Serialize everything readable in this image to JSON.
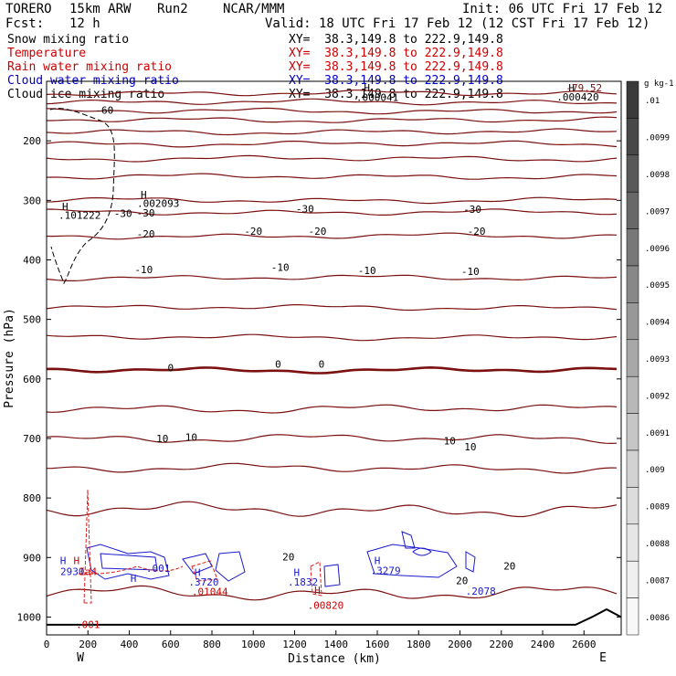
{
  "header": {
    "model": "TORERO",
    "resolution": "15km ARW",
    "run": "Run2",
    "org": "NCAR/MMM",
    "init": "Init: 06 UTC Fri 17 Feb 12",
    "fcst_label": "Fcst:",
    "fcst_value": "12 h",
    "valid": "Valid: 18 UTC Fri 17 Feb 12 (12 CST Fri 17 Feb 12)"
  },
  "fields": [
    {
      "name": "Snow mixing ratio",
      "color": "#000000",
      "xy": "XY=  38.3,149.8 to 222.9,149.8"
    },
    {
      "name": "Temperature",
      "color": "#cc0000",
      "xy": "XY=  38.3,149.8 to 222.9,149.8"
    },
    {
      "name": "Rain water mixing ratio",
      "color": "#cc0000",
      "xy": "XY=  38.3,149.8 to 222.9,149.8"
    },
    {
      "name": "Cloud water mixing ratio",
      "color": "#0000cc",
      "xy": "XY=  38.3,149.8 to 222.9,149.8"
    },
    {
      "name": "Cloud ice mixing ratio",
      "color": "#000000",
      "xy": "XY=  38.3,149.8 to 222.9,149.8"
    }
  ],
  "colors": {
    "temperature": "#7a1010",
    "rain": "#dd2020",
    "cloud_water": "#1a1ad0",
    "snow": "#000000"
  },
  "chart_data": {
    "type": "contour",
    "xlabel": "Distance (km)",
    "ylabel": "Pressure (hPa)",
    "xlim": [
      0,
      2780
    ],
    "ylim": [
      1030,
      100
    ],
    "x_ticks": [
      0,
      200,
      400,
      600,
      800,
      1000,
      1200,
      1400,
      1600,
      1800,
      2000,
      2200,
      2400,
      2600
    ],
    "y_ticks": [
      200,
      300,
      400,
      500,
      600,
      700,
      800,
      900,
      1000
    ],
    "west_label": "W",
    "east_label": "E",
    "colorbar": {
      "units": "g kg-1",
      "labels": [
        ".01",
        ".0099",
        ".0098",
        ".0097",
        ".0096",
        ".0095",
        ".0094",
        ".0093",
        ".0092",
        ".0091",
        ".009",
        ".0089",
        ".0088",
        ".0087",
        ".0086"
      ],
      "colors": [
        "#3a3a3a",
        "#484848",
        "#585858",
        "#686868",
        "#787878",
        "#888888",
        "#989898",
        "#a8a8a8",
        "#b8b8b8",
        "#c6c6c6",
        "#d2d2d2",
        "#dcdcdc",
        "#e6e6e6",
        "#f0f0f0",
        "#f8f8f8"
      ]
    },
    "temperature_contours": [
      {
        "p": 120,
        "label": ""
      },
      {
        "p": 135,
        "label": ""
      },
      {
        "p": 150,
        "label": "-60"
      },
      {
        "p": 165,
        "label": ""
      },
      {
        "p": 185,
        "label": ""
      },
      {
        "p": 205,
        "label": ""
      },
      {
        "p": 230,
        "label": ""
      },
      {
        "p": 260,
        "label": ""
      },
      {
        "p": 300,
        "label": ""
      },
      {
        "p": 320,
        "label": "-30"
      },
      {
        "p": 360,
        "label": "-20"
      },
      {
        "p": 430,
        "label": "-10"
      },
      {
        "p": 480,
        "label": ""
      },
      {
        "p": 530,
        "label": ""
      },
      {
        "p": 585,
        "label": "0"
      },
      {
        "p": 650,
        "label": ""
      },
      {
        "p": 700,
        "label": "10"
      },
      {
        "p": 750,
        "label": ""
      },
      {
        "p": 820,
        "label": ""
      },
      {
        "p": 960,
        "label": "20"
      }
    ],
    "temperature_labels": [
      {
        "x": 280,
        "p": 148,
        "text": "-60"
      },
      {
        "x": 370,
        "p": 322,
        "text": "-30"
      },
      {
        "x": 480,
        "p": 321,
        "text": "-30"
      },
      {
        "x": 1250,
        "p": 314,
        "text": "-30"
      },
      {
        "x": 2060,
        "p": 315,
        "text": "-30"
      },
      {
        "x": 480,
        "p": 356,
        "text": "-20"
      },
      {
        "x": 1000,
        "p": 352,
        "text": "-20"
      },
      {
        "x": 1310,
        "p": 352,
        "text": "-20"
      },
      {
        "x": 2080,
        "p": 352,
        "text": "-20"
      },
      {
        "x": 470,
        "p": 416,
        "text": "-10"
      },
      {
        "x": 1130,
        "p": 412,
        "text": "-10"
      },
      {
        "x": 1550,
        "p": 418,
        "text": "-10"
      },
      {
        "x": 2050,
        "p": 419,
        "text": "-10"
      },
      {
        "x": 600,
        "p": 581,
        "text": "0"
      },
      {
        "x": 1120,
        "p": 575,
        "text": "0"
      },
      {
        "x": 1330,
        "p": 575,
        "text": "0"
      },
      {
        "x": 560,
        "p": 700,
        "text": "10"
      },
      {
        "x": 700,
        "p": 698,
        "text": "10"
      },
      {
        "x": 1950,
        "p": 704,
        "text": "10"
      },
      {
        "x": 2050,
        "p": 714,
        "text": "10"
      },
      {
        "x": 1170,
        "p": 899,
        "text": "20"
      },
      {
        "x": 2010,
        "p": 939,
        "text": "20"
      },
      {
        "x": 2240,
        "p": 914,
        "text": "20"
      }
    ],
    "extrema_labels": [
      {
        "x": 90,
        "p": 310,
        "text": "H",
        "color": "#000000"
      },
      {
        "x": 160,
        "p": 325,
        "text": ".101222",
        "color": "#000000"
      },
      {
        "x": 470,
        "p": 290,
        "text": "H",
        "color": "#000000"
      },
      {
        "x": 540,
        "p": 305,
        "text": ".002093",
        "color": "#000000"
      },
      {
        "x": 1550,
        "p": 111,
        "text": "H",
        "color": "#000000"
      },
      {
        "x": 1600,
        "p": 127,
        "text": ".000041",
        "color": "#000000"
      },
      {
        "x": 2540,
        "p": 111,
        "text": "H",
        "color": "#000000"
      },
      {
        "x": 2570,
        "p": 126,
        "text": ".000420",
        "color": "#000000"
      },
      {
        "x": 2600,
        "p": 111,
        "text": "-79.52",
        "color": "#7a1010"
      },
      {
        "x": 80,
        "p": 905,
        "text": "H",
        "color": "#1a1ad0"
      },
      {
        "x": 125,
        "p": 923,
        "text": "2930",
        "color": "#1a1ad0"
      },
      {
        "x": 145,
        "p": 905,
        "text": "H",
        "color": "#cc0000"
      },
      {
        "x": 200,
        "p": 923,
        "text": "Ia4",
        "color": "#cc0000"
      },
      {
        "x": 420,
        "p": 935,
        "text": "H",
        "color": "#1a1ad0"
      },
      {
        "x": 540,
        "p": 918,
        "text": ".001",
        "color": "#1a1ad0"
      },
      {
        "x": 730,
        "p": 925,
        "text": "H",
        "color": "#1a1ad0"
      },
      {
        "x": 760,
        "p": 941,
        "text": ".3720",
        "color": "#1a1ad0"
      },
      {
        "x": 790,
        "p": 957,
        "text": ".01044",
        "color": "#cc0000"
      },
      {
        "x": 1210,
        "p": 925,
        "text": "H",
        "color": "#1a1ad0"
      },
      {
        "x": 1240,
        "p": 941,
        "text": ".1832",
        "color": "#1a1ad0"
      },
      {
        "x": 1310,
        "p": 955,
        "text": "H",
        "color": "#cc0000"
      },
      {
        "x": 1350,
        "p": 980,
        "text": ".00820",
        "color": "#cc0000"
      },
      {
        "x": 1600,
        "p": 905,
        "text": "H",
        "color": "#1a1ad0"
      },
      {
        "x": 1640,
        "p": 922,
        "text": ".3279",
        "color": "#1a1ad0"
      },
      {
        "x": 2100,
        "p": 956,
        "text": ".2078",
        "color": "#1a1ad0"
      },
      {
        "x": 200,
        "p": 1012,
        "text": ".001",
        "color": "#cc0000"
      }
    ]
  }
}
